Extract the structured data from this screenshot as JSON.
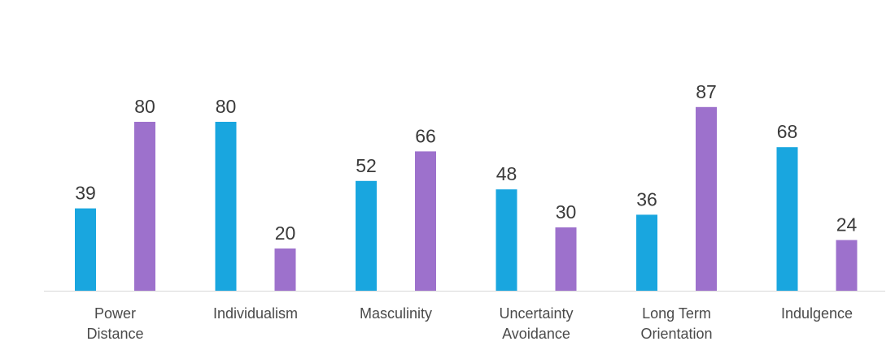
{
  "chart_data": {
    "type": "bar",
    "categories": [
      [
        "Power",
        "Distance"
      ],
      [
        "Individualism"
      ],
      [
        "Masculinity"
      ],
      [
        "Uncertainty",
        "Avoidance"
      ],
      [
        "Long Term",
        "Orientation"
      ],
      [
        "Indulgence"
      ]
    ],
    "series": [
      {
        "values": [
          39,
          80,
          52,
          48,
          36,
          68
        ],
        "color": "#19a6df"
      },
      {
        "values": [
          80,
          20,
          66,
          30,
          87,
          24
        ],
        "color": "#9d71cc"
      }
    ],
    "title": "",
    "xlabel": "",
    "ylabel": "",
    "ylim": [
      0,
      100
    ],
    "grid": false,
    "legend": "none",
    "data_labels": true,
    "baseline_color": "#d8d8d8"
  }
}
